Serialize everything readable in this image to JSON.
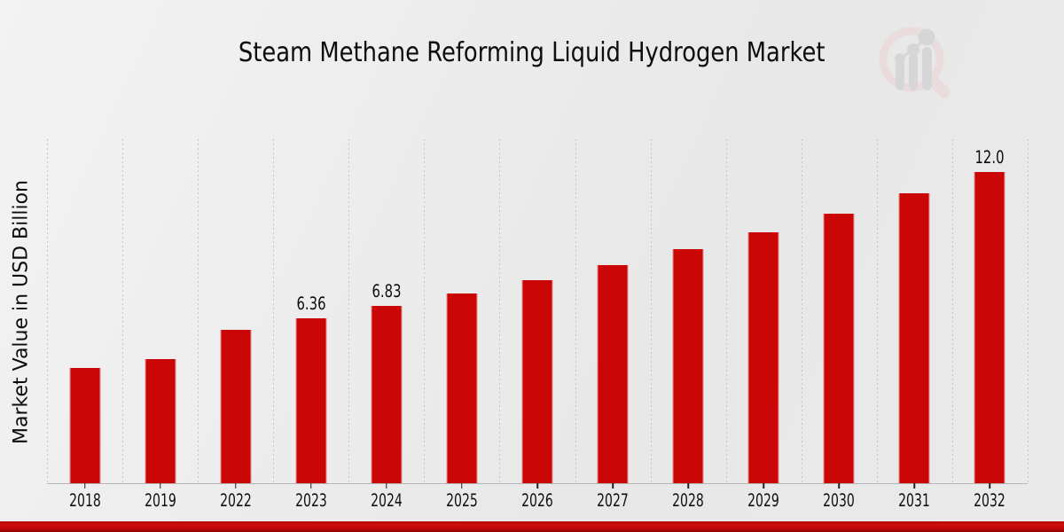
{
  "header": {
    "title": "Steam Methane Reforming Liquid Hydrogen Market"
  },
  "logo": {
    "name": "market-research-magnifier-bar-chart-logo",
    "ring_color": "#ecd2d4",
    "bars_color": "#c9c9cd"
  },
  "chart_data": {
    "type": "bar",
    "title": "Steam Methane Reforming Liquid Hydrogen Market",
    "xlabel": "",
    "ylabel": "Market Value in USD Billion",
    "categories": [
      "2018",
      "2019",
      "2022",
      "2023",
      "2024",
      "2025",
      "2026",
      "2027",
      "2028",
      "2029",
      "2030",
      "2031",
      "2032"
    ],
    "values": [
      4.45,
      4.79,
      5.92,
      6.36,
      6.83,
      7.32,
      7.84,
      8.41,
      9.03,
      9.68,
      10.4,
      11.18,
      12.0
    ],
    "point_labels": [
      "",
      "",
      "",
      "6.36",
      "6.83",
      "",
      "",
      "",
      "",
      "",
      "",
      "",
      "12.0"
    ],
    "ylim": [
      0,
      13.27
    ],
    "bar_color": "#cb0606",
    "grid": "vertical dashed gridlines at category boundaries",
    "legend": "none",
    "y_axis_ticks": "none"
  },
  "footer": {
    "accent_bar_color": "#c00a0a"
  }
}
